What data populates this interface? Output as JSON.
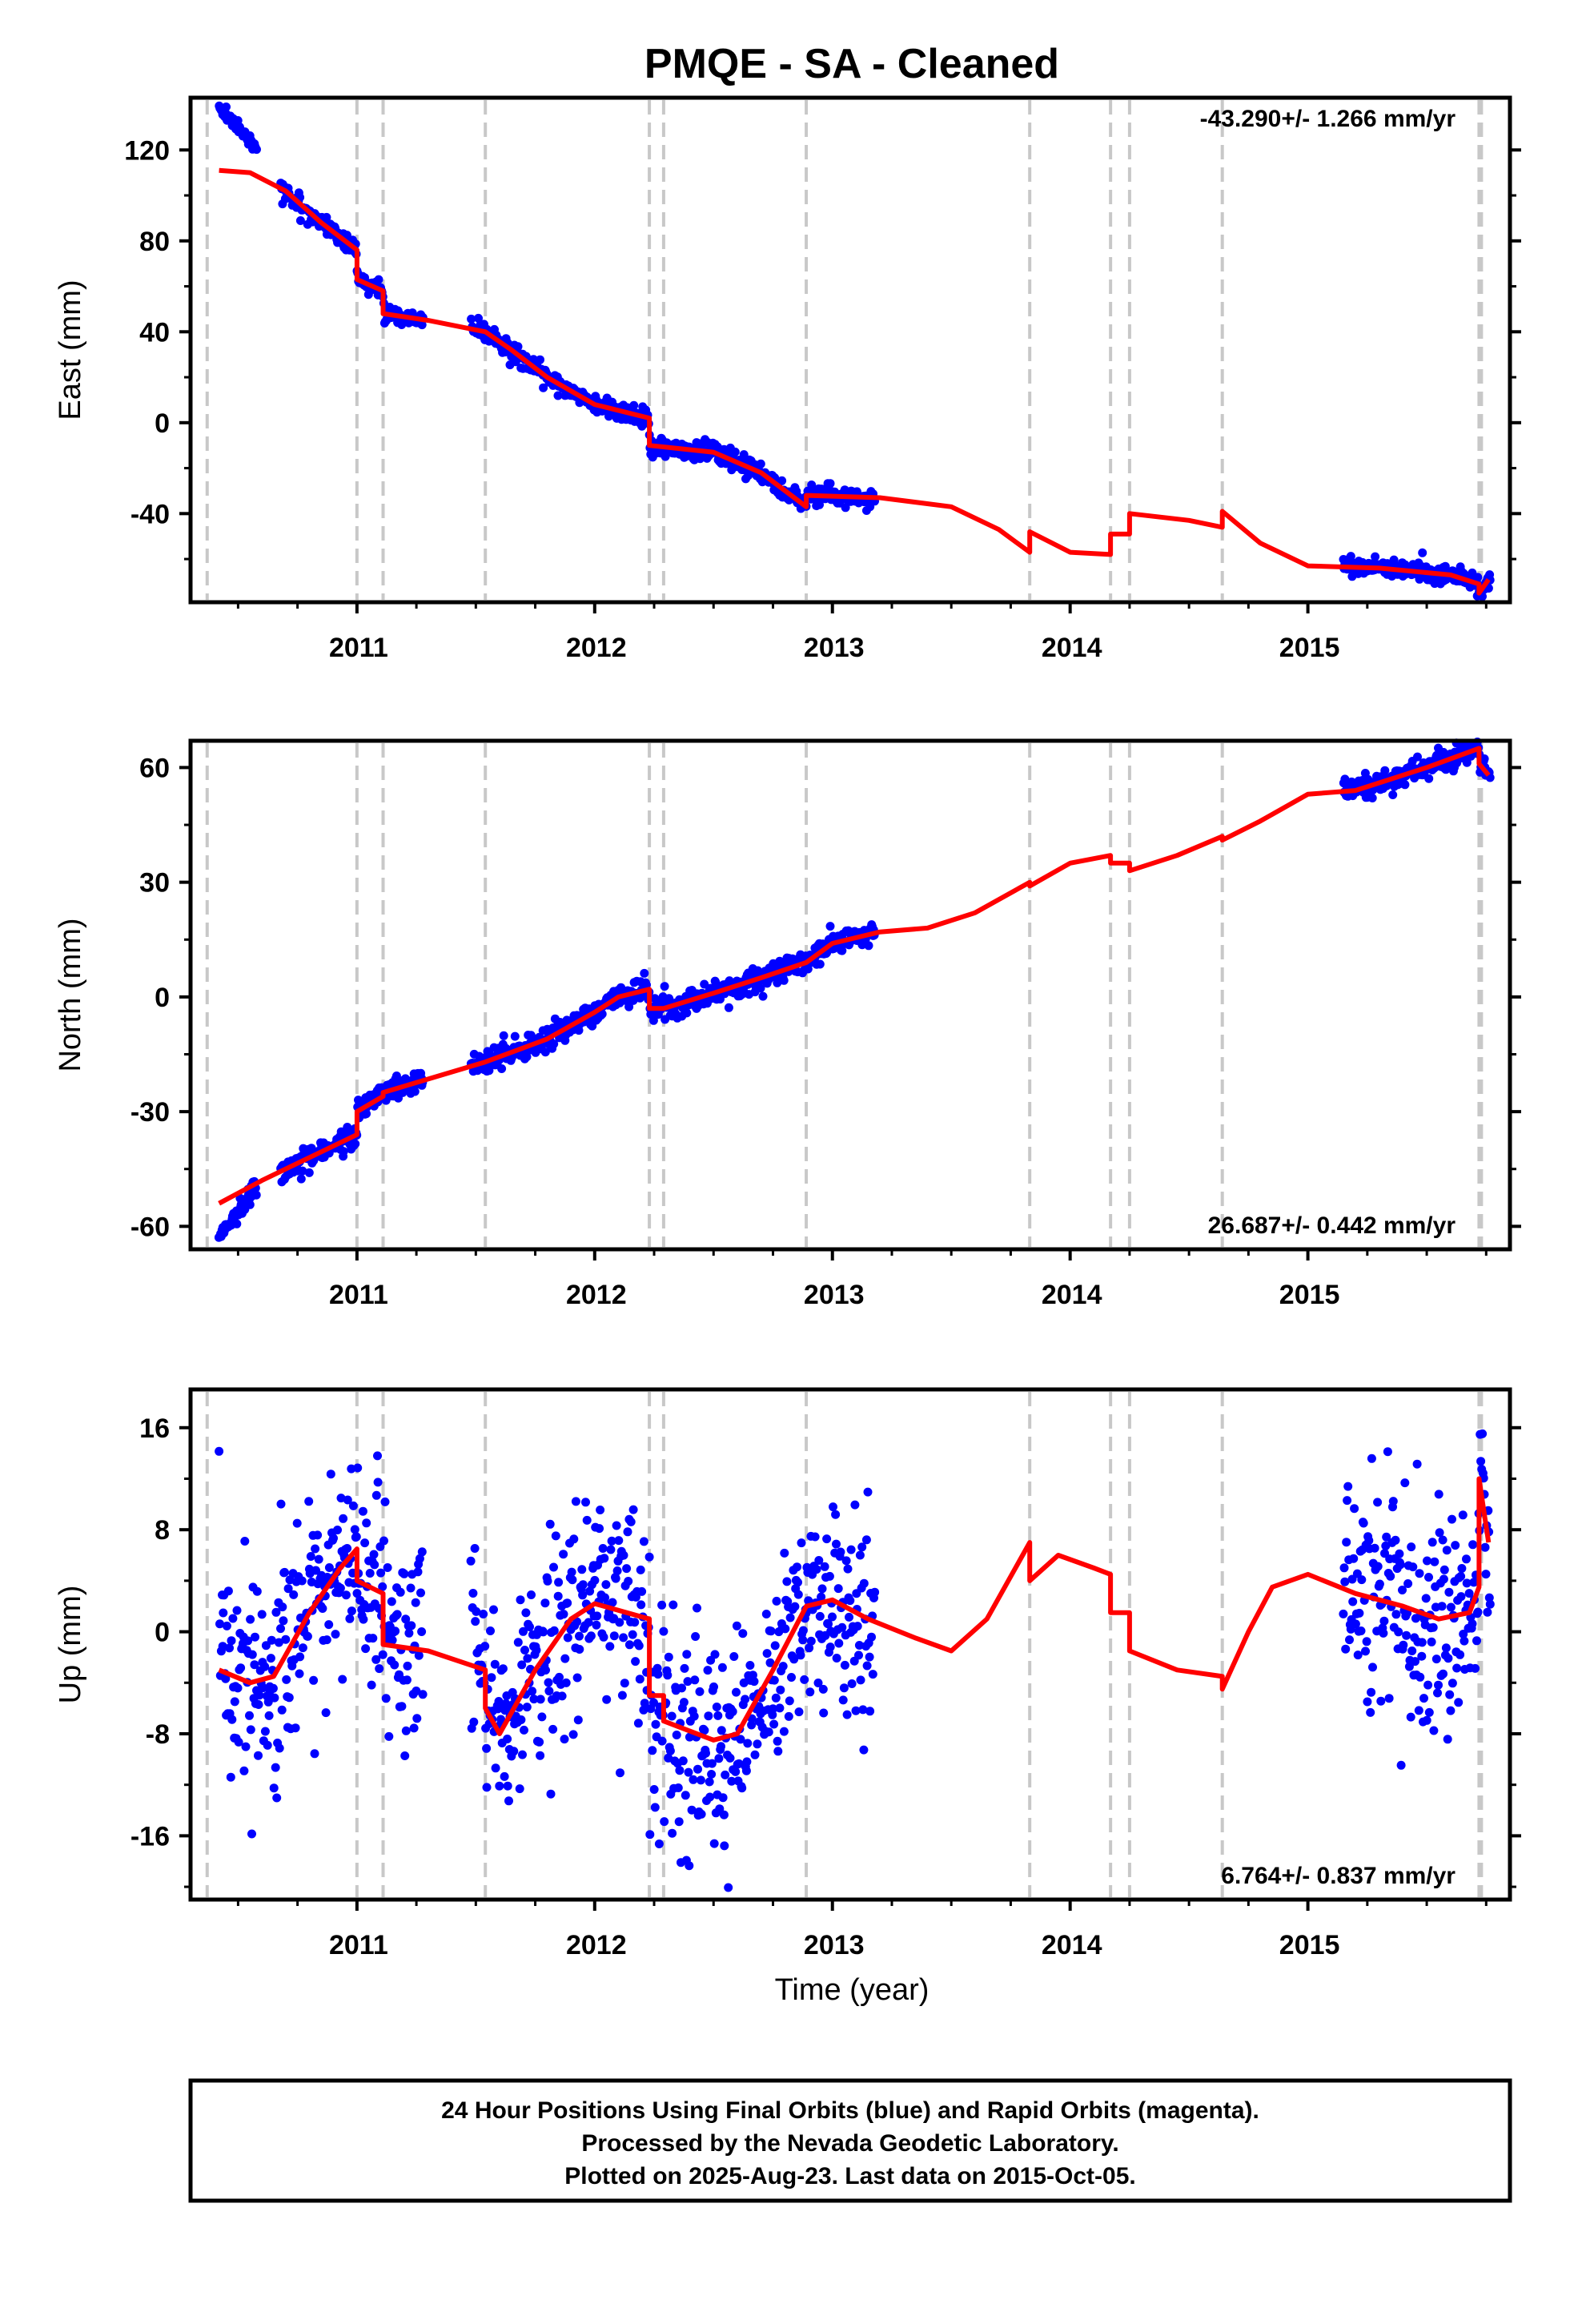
{
  "title": "PMQE  - SA - Cleaned",
  "xlabel": "Time (year)",
  "footer": {
    "line1": "24 Hour Positions Using Final Orbits (blue) and Rapid Orbits (magenta).",
    "line2": "Processed by the Nevada Geodetic Laboratory.",
    "line3": "Plotted on 2025-Aug-23. Last data on 2015-Oct-05."
  },
  "colors": {
    "data": "#0000ff",
    "model": "#ff0000",
    "steps": "#c8c8c8",
    "frame": "#000000"
  },
  "chart_data": [
    {
      "type": "scatter",
      "ylabel": "East (mm)",
      "xlim": [
        2010.3,
        2015.85
      ],
      "ylim": [
        -79,
        143
      ],
      "yticks": [
        120,
        80,
        40,
        0,
        -40
      ],
      "xticks": [
        2011,
        2012,
        2013,
        2014,
        2015
      ],
      "rate_label": "-43.290+/- 1.266 mm/yr",
      "rate_position": "top-right",
      "step_epochs": [
        2010.37,
        2011.0,
        2011.11,
        2011.54,
        2012.23,
        2012.29,
        2012.89,
        2013.83,
        2014.17,
        2014.25,
        2014.64,
        2015.72,
        2015.73
      ],
      "data_segments": [
        [
          2010.42,
          2010.58
        ],
        [
          2010.68,
          2011.28
        ],
        [
          2011.48,
          2013.18
        ],
        [
          2015.15,
          2015.77
        ]
      ],
      "model_curve": [
        [
          2010.42,
          111
        ],
        [
          2010.55,
          110
        ],
        [
          2010.7,
          102
        ],
        [
          2010.85,
          88
        ],
        [
          2011.0,
          76
        ],
        [
          2011.0,
          63
        ],
        [
          2011.11,
          58
        ],
        [
          2011.11,
          48
        ],
        [
          2011.3,
          45
        ],
        [
          2011.54,
          40
        ],
        [
          2011.65,
          32
        ],
        [
          2011.8,
          20
        ],
        [
          2012.0,
          8
        ],
        [
          2012.23,
          2
        ],
        [
          2012.23,
          -10
        ],
        [
          2012.5,
          -13
        ],
        [
          2012.7,
          -22
        ],
        [
          2012.89,
          -37
        ],
        [
          2012.89,
          -32
        ],
        [
          2013.2,
          -33
        ],
        [
          2013.5,
          -37
        ],
        [
          2013.7,
          -47
        ],
        [
          2013.83,
          -57
        ],
        [
          2013.83,
          -48
        ],
        [
          2014.0,
          -57
        ],
        [
          2014.17,
          -58
        ],
        [
          2014.17,
          -49
        ],
        [
          2014.25,
          -49
        ],
        [
          2014.25,
          -40
        ],
        [
          2014.5,
          -43
        ],
        [
          2014.64,
          -46
        ],
        [
          2014.64,
          -39
        ],
        [
          2014.8,
          -53
        ],
        [
          2015.0,
          -63
        ],
        [
          2015.3,
          -64
        ],
        [
          2015.6,
          -67
        ],
        [
          2015.72,
          -71
        ],
        [
          2015.72,
          -75
        ],
        [
          2015.76,
          -69
        ]
      ],
      "scatter_noise_mm": 2.0
    },
    {
      "type": "scatter",
      "ylabel": "North (mm)",
      "xlim": [
        2010.3,
        2015.85
      ],
      "ylim": [
        -66,
        67
      ],
      "yticks": [
        60,
        30,
        0,
        -30,
        -60
      ],
      "xticks": [
        2011,
        2012,
        2013,
        2014,
        2015
      ],
      "rate_label": "26.687+/- 0.442 mm/yr",
      "rate_position": "bottom-right",
      "step_epochs": [
        2010.37,
        2011.0,
        2011.11,
        2011.54,
        2012.23,
        2012.29,
        2012.89,
        2013.83,
        2014.17,
        2014.25,
        2014.64,
        2015.72,
        2015.73
      ],
      "data_segments": [
        [
          2010.42,
          2010.58
        ],
        [
          2010.68,
          2011.28
        ],
        [
          2011.48,
          2013.18
        ],
        [
          2015.15,
          2015.77
        ]
      ],
      "model_curve": [
        [
          2010.42,
          -54
        ],
        [
          2010.6,
          -48
        ],
        [
          2010.8,
          -42
        ],
        [
          2011.0,
          -36
        ],
        [
          2011.0,
          -30
        ],
        [
          2011.11,
          -26
        ],
        [
          2011.11,
          -25
        ],
        [
          2011.54,
          -17
        ],
        [
          2011.8,
          -11
        ],
        [
          2012.0,
          -4
        ],
        [
          2012.1,
          0
        ],
        [
          2012.23,
          2
        ],
        [
          2012.23,
          -3
        ],
        [
          2012.29,
          -3
        ],
        [
          2012.5,
          1
        ],
        [
          2012.7,
          5
        ],
        [
          2012.89,
          9
        ],
        [
          2013.0,
          14
        ],
        [
          2013.2,
          17
        ],
        [
          2013.4,
          18
        ],
        [
          2013.6,
          22
        ],
        [
          2013.83,
          30
        ],
        [
          2013.83,
          29
        ],
        [
          2014.0,
          35
        ],
        [
          2014.17,
          37
        ],
        [
          2014.17,
          35
        ],
        [
          2014.25,
          35
        ],
        [
          2014.25,
          33
        ],
        [
          2014.45,
          37
        ],
        [
          2014.64,
          42
        ],
        [
          2014.64,
          41
        ],
        [
          2014.8,
          46
        ],
        [
          2015.0,
          53
        ],
        [
          2015.2,
          54
        ],
        [
          2015.5,
          60
        ],
        [
          2015.72,
          65
        ],
        [
          2015.72,
          61
        ],
        [
          2015.76,
          58
        ]
      ],
      "scatter_noise_mm": 1.5
    },
    {
      "type": "scatter",
      "ylabel": "Up (mm)",
      "xlim": [
        2010.3,
        2015.85
      ],
      "ylim": [
        -21,
        19
      ],
      "yticks": [
        16,
        8,
        0,
        -8,
        -16
      ],
      "xticks": [
        2011,
        2012,
        2013,
        2014,
        2015
      ],
      "rate_label": "6.764+/- 0.837 mm/yr",
      "rate_position": "bottom-right",
      "step_epochs": [
        2010.37,
        2011.0,
        2011.11,
        2011.54,
        2012.23,
        2012.29,
        2012.89,
        2013.83,
        2014.17,
        2014.25,
        2014.64,
        2015.72,
        2015.73
      ],
      "data_segments": [
        [
          2010.42,
          2011.28
        ],
        [
          2011.48,
          2013.18
        ],
        [
          2015.15,
          2015.77
        ]
      ],
      "model_curve": [
        [
          2010.42,
          -3
        ],
        [
          2010.55,
          -4
        ],
        [
          2010.65,
          -3.5
        ],
        [
          2010.8,
          1.5
        ],
        [
          2010.93,
          5
        ],
        [
          2011.0,
          6.5
        ],
        [
          2011.0,
          4
        ],
        [
          2011.11,
          3
        ],
        [
          2011.11,
          -1
        ],
        [
          2011.3,
          -1.5
        ],
        [
          2011.54,
          -3
        ],
        [
          2011.54,
          -6
        ],
        [
          2011.6,
          -8
        ],
        [
          2011.75,
          -3
        ],
        [
          2011.9,
          1
        ],
        [
          2012.0,
          2.2
        ],
        [
          2012.23,
          1
        ],
        [
          2012.23,
          -5
        ],
        [
          2012.29,
          -5
        ],
        [
          2012.29,
          -7
        ],
        [
          2012.5,
          -8.5
        ],
        [
          2012.6,
          -8
        ],
        [
          2012.75,
          -3
        ],
        [
          2012.89,
          2
        ],
        [
          2013.0,
          2.5
        ],
        [
          2013.15,
          1
        ],
        [
          2013.35,
          -0.5
        ],
        [
          2013.5,
          -1.5
        ],
        [
          2013.65,
          1
        ],
        [
          2013.83,
          7
        ],
        [
          2013.83,
          4
        ],
        [
          2013.95,
          6
        ],
        [
          2014.1,
          5
        ],
        [
          2014.17,
          4.5
        ],
        [
          2014.17,
          1.5
        ],
        [
          2014.25,
          1.5
        ],
        [
          2014.25,
          -1.5
        ],
        [
          2014.45,
          -3
        ],
        [
          2014.64,
          -3.5
        ],
        [
          2014.64,
          -4.5
        ],
        [
          2014.75,
          0
        ],
        [
          2014.85,
          3.5
        ],
        [
          2015.0,
          4.5
        ],
        [
          2015.2,
          3
        ],
        [
          2015.4,
          2
        ],
        [
          2015.55,
          1
        ],
        [
          2015.68,
          1.5
        ],
        [
          2015.72,
          3.5
        ],
        [
          2015.72,
          12
        ],
        [
          2015.76,
          7
        ]
      ],
      "scatter_noise_mm": 4.2
    }
  ]
}
